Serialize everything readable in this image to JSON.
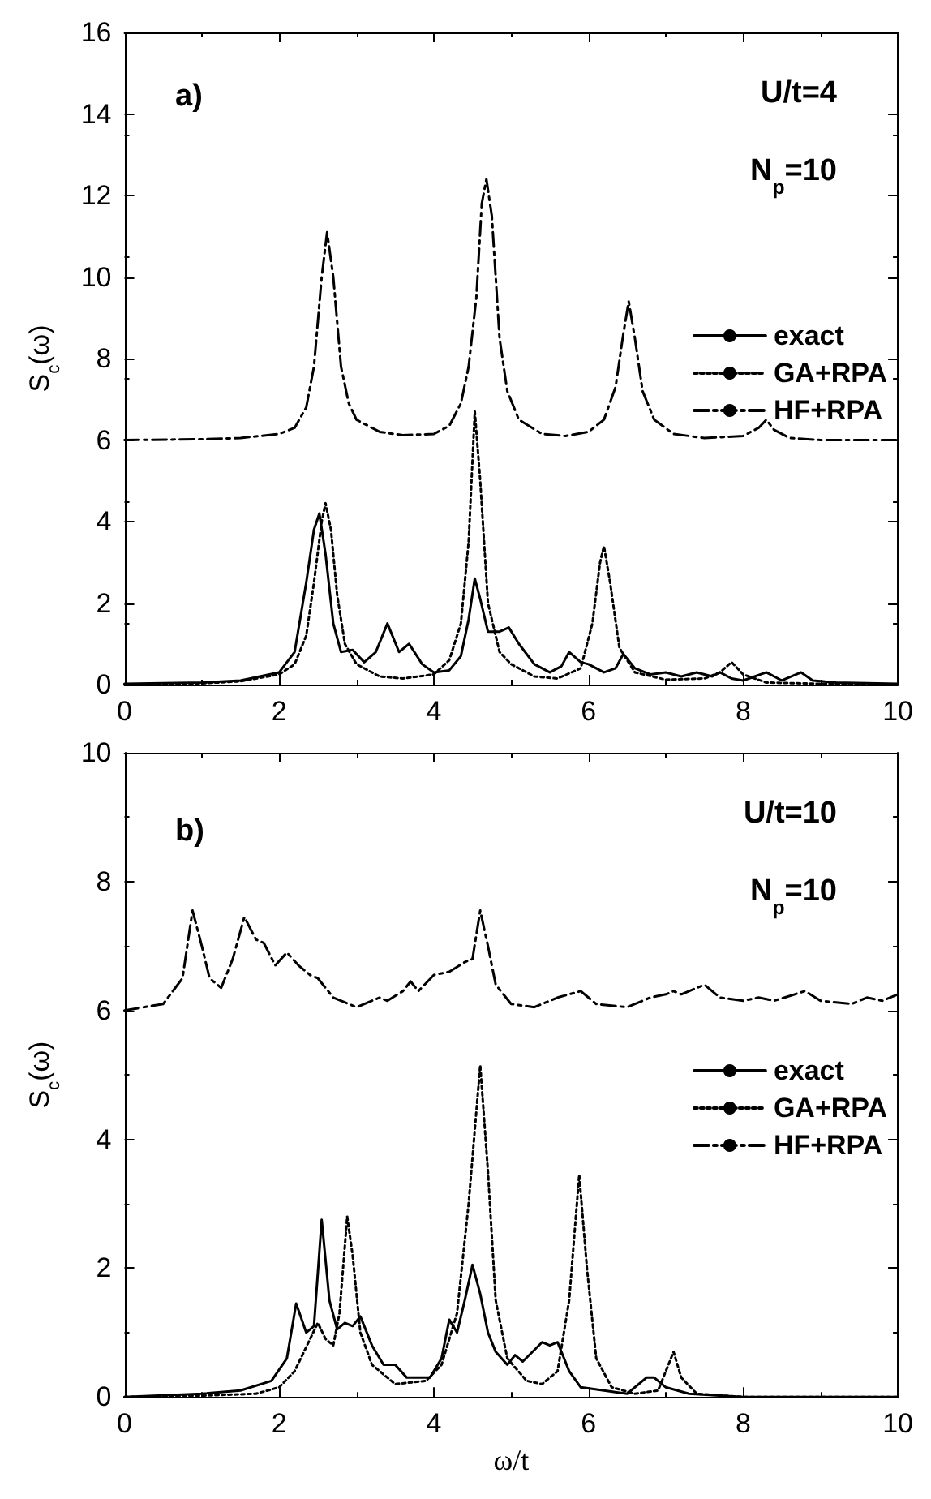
{
  "chart_data": [
    {
      "type": "line",
      "ylabel": "S$_{c}$(ω)",
      "xlim": [
        0,
        10
      ],
      "xticks": [
        0,
        2,
        4,
        6,
        8,
        10
      ],
      "ylim": [
        0,
        16
      ],
      "yticks": [
        0,
        2,
        4,
        6,
        8,
        10,
        12,
        14,
        16
      ],
      "grid": false,
      "legend": "right",
      "annotations": [
        "a)",
        "U/t=4",
        "N$_{p}$=10"
      ],
      "series": [
        {
          "name": "exact",
          "color": "#000000",
          "line_style": "solid",
          "x": [
            0,
            1,
            1.5,
            2,
            2.2,
            2.35,
            2.45,
            2.52,
            2.6,
            2.7,
            2.8,
            2.95,
            3.1,
            3.25,
            3.4,
            3.55,
            3.68,
            3.85,
            4,
            4.2,
            4.35,
            4.45,
            4.53,
            4.6,
            4.7,
            4.85,
            4.97,
            5.1,
            5.3,
            5.5,
            5.65,
            5.75,
            5.9,
            6,
            6.2,
            6.35,
            6.45,
            6.6,
            6.8,
            7,
            7.2,
            7.4,
            7.6,
            7.7,
            7.85,
            8,
            8.3,
            8.5,
            8.75,
            8.9,
            9.2,
            10
          ],
          "values": [
            0.02,
            0.05,
            0.1,
            0.3,
            0.8,
            2.5,
            3.8,
            4.2,
            3.2,
            1.5,
            0.8,
            0.85,
            0.55,
            0.8,
            1.5,
            0.8,
            1,
            0.5,
            0.3,
            0.35,
            0.7,
            1.6,
            2.6,
            2.1,
            1.3,
            1.3,
            1.4,
            1,
            0.5,
            0.3,
            0.45,
            0.8,
            0.55,
            0.5,
            0.3,
            0.4,
            0.75,
            0.4,
            0.25,
            0.3,
            0.2,
            0.3,
            0.2,
            0.3,
            0.15,
            0.1,
            0.3,
            0.1,
            0.3,
            0.1,
            0.05,
            0.02
          ]
        },
        {
          "name": "GA+RPA",
          "color": "#000000",
          "line_style": "dotted",
          "x": [
            0,
            1,
            1.5,
            2,
            2.2,
            2.35,
            2.45,
            2.55,
            2.6,
            2.67,
            2.75,
            2.85,
            3,
            3.3,
            3.6,
            4,
            4.2,
            4.35,
            4.45,
            4.53,
            4.6,
            4.7,
            4.85,
            5,
            5.3,
            5.6,
            5.9,
            6.05,
            6.15,
            6.2,
            6.28,
            6.4,
            6.6,
            7,
            7.5,
            7.7,
            7.85,
            8,
            8.3,
            9,
            10
          ],
          "values": [
            0,
            0.03,
            0.08,
            0.25,
            0.5,
            1.2,
            2.5,
            4,
            4.45,
            3.8,
            2.2,
            1,
            0.5,
            0.2,
            0.15,
            0.25,
            0.6,
            1.5,
            3.5,
            6.7,
            5,
            2,
            0.8,
            0.5,
            0.2,
            0.15,
            0.4,
            1.5,
            3,
            3.4,
            2.5,
            0.9,
            0.3,
            0.12,
            0.15,
            0.3,
            0.55,
            0.25,
            0.05,
            0.02,
            0
          ]
        },
        {
          "name": "HF+RPA",
          "color": "#000000",
          "line_style": "dashed",
          "x": [
            0,
            1,
            1.5,
            2,
            2.2,
            2.35,
            2.45,
            2.55,
            2.62,
            2.7,
            2.8,
            2.9,
            3,
            3.3,
            3.6,
            4,
            4.2,
            4.35,
            4.45,
            4.55,
            4.62,
            4.68,
            4.75,
            4.85,
            4.95,
            5.1,
            5.4,
            5.7,
            6,
            6.2,
            6.35,
            6.45,
            6.52,
            6.6,
            6.7,
            6.85,
            7.1,
            7.5,
            8,
            8.2,
            8.3,
            8.4,
            8.6,
            9,
            10
          ],
          "values": [
            6,
            6.02,
            6.05,
            6.15,
            6.3,
            6.8,
            7.8,
            10,
            11.1,
            10,
            7.8,
            6.9,
            6.5,
            6.2,
            6.12,
            6.15,
            6.35,
            6.9,
            7.8,
            9.5,
            11.8,
            12.4,
            11.5,
            8.5,
            7.2,
            6.5,
            6.15,
            6.1,
            6.2,
            6.5,
            7.3,
            8.6,
            9.4,
            8.5,
            7.2,
            6.5,
            6.15,
            6.05,
            6.1,
            6.3,
            6.5,
            6.25,
            6.05,
            6,
            6
          ]
        }
      ]
    },
    {
      "type": "line",
      "xlabel": "ω/t",
      "ylabel": "S$_{c}$(ω)",
      "xlim": [
        0,
        10
      ],
      "xticks": [
        0,
        2,
        4,
        6,
        8,
        10
      ],
      "ylim": [
        0,
        10
      ],
      "yticks": [
        0,
        2,
        4,
        6,
        8,
        10
      ],
      "grid": false,
      "legend": "right",
      "annotations": [
        "b)",
        "U/t=10",
        "N$_{p}$=10"
      ],
      "series": [
        {
          "name": "exact",
          "color": "#000000",
          "line_style": "solid",
          "x": [
            0,
            1,
            1.5,
            1.9,
            2.1,
            2.22,
            2.35,
            2.45,
            2.55,
            2.65,
            2.75,
            2.85,
            2.95,
            3.05,
            3.2,
            3.35,
            3.5,
            3.65,
            3.95,
            4.1,
            4.2,
            4.3,
            4.4,
            4.5,
            4.6,
            4.7,
            4.8,
            4.95,
            5.05,
            5.15,
            5.4,
            5.5,
            5.6,
            5.75,
            5.9,
            6.2,
            6.5,
            6.75,
            6.85,
            7,
            7.3,
            8,
            10
          ],
          "values": [
            0,
            0.05,
            0.1,
            0.25,
            0.6,
            1.45,
            1,
            1.1,
            2.75,
            1.5,
            1.05,
            1.15,
            1.1,
            1.25,
            0.8,
            0.5,
            0.5,
            0.3,
            0.3,
            0.6,
            1.2,
            1,
            1.5,
            2.05,
            1.6,
            1,
            0.7,
            0.5,
            0.65,
            0.55,
            0.85,
            0.8,
            0.85,
            0.4,
            0.15,
            0.1,
            0.05,
            0.3,
            0.3,
            0.15,
            0.05,
            0,
            0
          ]
        },
        {
          "name": "GA+RPA",
          "color": "#000000",
          "line_style": "dotted",
          "x": [
            0,
            1,
            1.7,
            2,
            2.2,
            2.4,
            2.5,
            2.6,
            2.7,
            2.78,
            2.88,
            2.95,
            3.05,
            3.2,
            3.5,
            3.9,
            4.1,
            4.3,
            4.45,
            4.6,
            4.7,
            4.8,
            4.95,
            5.2,
            5.4,
            5.6,
            5.75,
            5.88,
            5.98,
            6.1,
            6.3,
            6.6,
            6.9,
            7,
            7.1,
            7.2,
            7.4,
            8,
            10
          ],
          "values": [
            0,
            0.02,
            0.05,
            0.15,
            0.4,
            0.9,
            1.15,
            0.9,
            0.8,
            1.3,
            2.8,
            2.2,
            1,
            0.5,
            0.2,
            0.25,
            0.5,
            1.3,
            3,
            5.15,
            3.5,
            1.5,
            0.6,
            0.25,
            0.2,
            0.4,
            1.5,
            3.45,
            2,
            0.6,
            0.15,
            0.05,
            0.1,
            0.4,
            0.7,
            0.3,
            0.05,
            0,
            0
          ]
        },
        {
          "name": "HF+RPA",
          "color": "#000000",
          "line_style": "dashed",
          "x": [
            0,
            0.5,
            0.75,
            0.88,
            1,
            1.1,
            1.25,
            1.4,
            1.55,
            1.7,
            1.8,
            1.95,
            2.1,
            2.25,
            2.4,
            2.5,
            2.7,
            3,
            3.3,
            3.4,
            3.6,
            3.7,
            3.8,
            4,
            4.2,
            4.4,
            4.5,
            4.6,
            4.7,
            4.8,
            5,
            5.3,
            5.6,
            5.9,
            6.1,
            6.5,
            6.8,
            7,
            7.1,
            7.2,
            7.5,
            7.7,
            8,
            8.2,
            8.4,
            8.8,
            9,
            9.4,
            9.6,
            9.8,
            10
          ],
          "values": [
            6,
            6.1,
            6.5,
            7.55,
            7,
            6.5,
            6.35,
            6.8,
            7.45,
            7.1,
            7.05,
            6.7,
            6.9,
            6.7,
            6.55,
            6.5,
            6.2,
            6.05,
            6.2,
            6.15,
            6.3,
            6.45,
            6.3,
            6.55,
            6.6,
            6.75,
            6.8,
            7.55,
            7,
            6.4,
            6.1,
            6.05,
            6.2,
            6.3,
            6.1,
            6.05,
            6.2,
            6.25,
            6.3,
            6.25,
            6.4,
            6.2,
            6.15,
            6.2,
            6.15,
            6.3,
            6.15,
            6.1,
            6.2,
            6.15,
            6.25
          ]
        }
      ]
    }
  ]
}
